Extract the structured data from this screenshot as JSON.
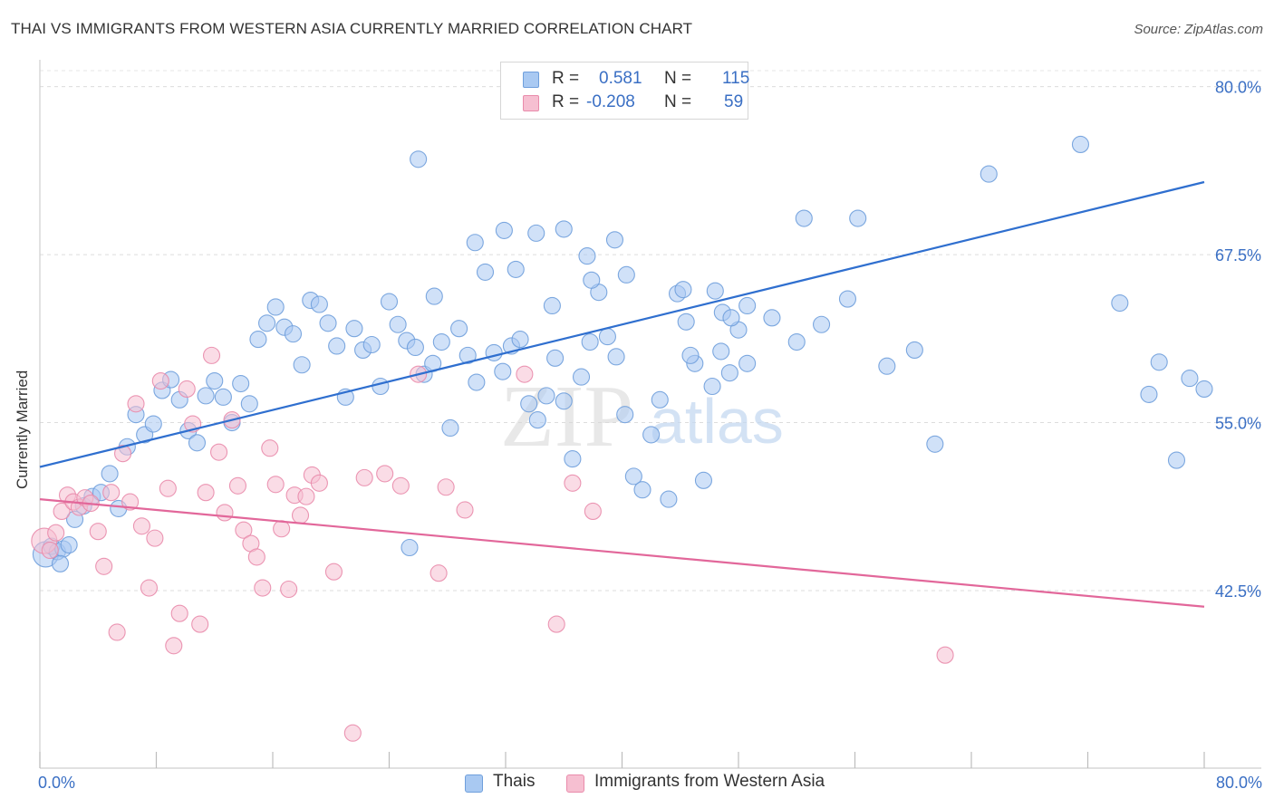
{
  "title": "THAI VS IMMIGRANTS FROM WESTERN ASIA CURRENTLY MARRIED CORRELATION CHART",
  "source": "Source: ZipAtlas.com",
  "watermark": {
    "zip": "ZIP",
    "atlas": "atlas"
  },
  "legend": {
    "rows": [
      {
        "r_label": "R =",
        "r_value": "0.581",
        "n_label": "N =",
        "n_value": "115",
        "color": "#a9c9f2",
        "border": "#6f9fdc"
      },
      {
        "r_label": "R =",
        "r_value": "-0.208",
        "n_label": "N =",
        "n_value": "59",
        "color": "#f6bfd1",
        "border": "#e98bab"
      }
    ]
  },
  "bottom_legend": [
    {
      "label": "Thais",
      "color": "#a9c9f2",
      "border": "#6f9fdc"
    },
    {
      "label": "Immigrants from Western Asia",
      "color": "#f6bfd1",
      "border": "#e98bab"
    }
  ],
  "chart_data": {
    "type": "scatter",
    "ylabel": "Currently Married",
    "xlim": [
      0,
      80
    ],
    "ylim": [
      30.5,
      82.0
    ],
    "x_tick_labels": [
      {
        "value": 0,
        "label": "0.0%"
      },
      {
        "value": 80,
        "label": "80.0%"
      }
    ],
    "y_tick_labels": [
      {
        "value": 80.0,
        "label": "80.0%"
      },
      {
        "value": 67.5,
        "label": "67.5%"
      },
      {
        "value": 55.0,
        "label": "55.0%"
      },
      {
        "value": 42.5,
        "label": "42.5%"
      }
    ],
    "x_minor_ticks": [
      0,
      8,
      16,
      24,
      32,
      40,
      48,
      56,
      64,
      72,
      80
    ],
    "grid": "horizontal dashed",
    "colors": {
      "blue": "#3a76d4",
      "pink": "#e8709a",
      "axis_text": "#3a6fc4"
    },
    "series": [
      {
        "name": "Thais",
        "color": "#a9c9f2",
        "stroke": "#6f9fdc",
        "trend": {
          "x": [
            0,
            80
          ],
          "y": [
            51.7,
            72.9
          ],
          "color": "#2f6fcf"
        },
        "points": [
          [
            0.4,
            45.2,
            14
          ],
          [
            0.8,
            45.8,
            9
          ],
          [
            1.2,
            45.4,
            9
          ],
          [
            1.6,
            45.6,
            9
          ],
          [
            2.0,
            45.9,
            9
          ],
          [
            1.4,
            44.5,
            9
          ],
          [
            2.4,
            47.8,
            9
          ],
          [
            3.0,
            48.8,
            9
          ],
          [
            3.6,
            49.5,
            9
          ],
          [
            4.2,
            49.8,
            9
          ],
          [
            4.8,
            51.2,
            9
          ],
          [
            5.4,
            48.6,
            9
          ],
          [
            6.0,
            53.2,
            9
          ],
          [
            6.6,
            55.6,
            9
          ],
          [
            7.2,
            54.1,
            9
          ],
          [
            7.8,
            54.9,
            9
          ],
          [
            8.4,
            57.4,
            9
          ],
          [
            9.0,
            58.2,
            9
          ],
          [
            9.6,
            56.7,
            9
          ],
          [
            10.2,
            54.4,
            9
          ],
          [
            10.8,
            53.5,
            9
          ],
          [
            11.4,
            57.0,
            9
          ],
          [
            12.0,
            58.1,
            9
          ],
          [
            12.6,
            56.9,
            9
          ],
          [
            13.2,
            55.0,
            9
          ],
          [
            13.8,
            57.9,
            9
          ],
          [
            14.4,
            56.4,
            9
          ],
          [
            15.0,
            61.2,
            9
          ],
          [
            15.6,
            62.4,
            9
          ],
          [
            16.2,
            63.6,
            9
          ],
          [
            16.8,
            62.1,
            9
          ],
          [
            17.4,
            61.6,
            9
          ],
          [
            18.0,
            59.3,
            9
          ],
          [
            18.6,
            64.1,
            9
          ],
          [
            19.2,
            63.8,
            9
          ],
          [
            19.8,
            62.4,
            9
          ],
          [
            20.4,
            60.7,
            9
          ],
          [
            21.0,
            56.9,
            9
          ],
          [
            21.6,
            62.0,
            9
          ],
          [
            22.2,
            60.4,
            9
          ],
          [
            22.8,
            60.8,
            9
          ],
          [
            23.4,
            57.7,
            9
          ],
          [
            24.0,
            64.0,
            9
          ],
          [
            24.6,
            62.3,
            9
          ],
          [
            25.2,
            61.1,
            9
          ],
          [
            25.8,
            60.6,
            9
          ],
          [
            26.4,
            58.6,
            9
          ],
          [
            27.0,
            59.4,
            9
          ],
          [
            27.6,
            61.0,
            9
          ],
          [
            28.2,
            54.6,
            9
          ],
          [
            28.8,
            62.0,
            9
          ],
          [
            29.4,
            60.0,
            9
          ],
          [
            30.0,
            58.0,
            9
          ],
          [
            30.6,
            66.2,
            9
          ],
          [
            31.2,
            60.2,
            9
          ],
          [
            31.8,
            58.8,
            9
          ],
          [
            32.4,
            60.7,
            9
          ],
          [
            33.0,
            61.2,
            9
          ],
          [
            33.6,
            56.4,
            9
          ],
          [
            34.2,
            55.2,
            9
          ],
          [
            34.8,
            57.0,
            9
          ],
          [
            35.4,
            59.8,
            9
          ],
          [
            36.0,
            56.6,
            9
          ],
          [
            36.6,
            52.3,
            9
          ],
          [
            37.2,
            58.4,
            9
          ],
          [
            37.8,
            61.0,
            9
          ],
          [
            38.4,
            64.7,
            9
          ],
          [
            39.0,
            61.4,
            9
          ],
          [
            39.6,
            59.9,
            9
          ],
          [
            40.2,
            55.6,
            9
          ],
          [
            40.8,
            51.0,
            9
          ],
          [
            41.4,
            50.0,
            9
          ],
          [
            42.0,
            54.1,
            9
          ],
          [
            42.6,
            56.7,
            9
          ],
          [
            43.2,
            49.3,
            9
          ],
          [
            43.8,
            64.6,
            9
          ],
          [
            44.4,
            62.5,
            9
          ],
          [
            45.0,
            59.4,
            9
          ],
          [
            45.6,
            50.7,
            9
          ],
          [
            46.2,
            57.7,
            9
          ],
          [
            46.8,
            60.3,
            9
          ],
          [
            47.4,
            58.7,
            9
          ],
          [
            48.0,
            61.9,
            9
          ],
          [
            48.6,
            59.4,
            9
          ],
          [
            25.4,
            45.7,
            9
          ],
          [
            26.0,
            74.6,
            9
          ],
          [
            27.1,
            64.4,
            9
          ],
          [
            29.9,
            68.4,
            9
          ],
          [
            31.9,
            69.3,
            9
          ],
          [
            32.7,
            66.4,
            9
          ],
          [
            34.1,
            69.1,
            9
          ],
          [
            36.0,
            69.4,
            9
          ],
          [
            37.6,
            67.4,
            9
          ],
          [
            39.5,
            68.6,
            9
          ],
          [
            35.2,
            63.7,
            9
          ],
          [
            37.9,
            65.6,
            9
          ],
          [
            40.3,
            66.0,
            9
          ],
          [
            44.2,
            64.9,
            9
          ],
          [
            44.7,
            60.0,
            9
          ],
          [
            46.4,
            64.8,
            9
          ],
          [
            46.9,
            63.2,
            9
          ],
          [
            47.5,
            62.8,
            9
          ],
          [
            48.6,
            63.7,
            9
          ],
          [
            50.3,
            62.8,
            9
          ],
          [
            52.0,
            61.0,
            9
          ],
          [
            53.7,
            62.3,
            9
          ],
          [
            55.5,
            64.2,
            9
          ],
          [
            58.2,
            59.2,
            9
          ],
          [
            60.1,
            60.4,
            9
          ],
          [
            52.5,
            70.2,
            9
          ],
          [
            56.2,
            70.2,
            9
          ],
          [
            61.5,
            53.4,
            9
          ],
          [
            65.2,
            73.5,
            9
          ],
          [
            71.5,
            75.7,
            9
          ],
          [
            74.2,
            63.9,
            9
          ],
          [
            76.9,
            59.5,
            9
          ],
          [
            79.0,
            58.3,
            9
          ],
          [
            78.1,
            52.2,
            9
          ],
          [
            76.2,
            57.1,
            9
          ],
          [
            80.0,
            57.5,
            9
          ]
        ]
      },
      {
        "name": "Immigrants from Western Asia",
        "color": "#f6bfd1",
        "stroke": "#e98bab",
        "trend": {
          "x": [
            0,
            80
          ],
          "y": [
            49.3,
            41.3
          ],
          "color": "#e2679a"
        },
        "points": [
          [
            0.3,
            46.2,
            14
          ],
          [
            0.7,
            45.5,
            9
          ],
          [
            1.1,
            46.8,
            9
          ],
          [
            1.5,
            48.4,
            9
          ],
          [
            1.9,
            49.6,
            9
          ],
          [
            2.3,
            49.1,
            9
          ],
          [
            2.7,
            48.7,
            9
          ],
          [
            3.1,
            49.4,
            9
          ],
          [
            3.5,
            49.0,
            9
          ],
          [
            4.0,
            46.9,
            9
          ],
          [
            4.4,
            44.3,
            9
          ],
          [
            4.9,
            49.8,
            9
          ],
          [
            5.3,
            39.4,
            9
          ],
          [
            5.7,
            52.7,
            9
          ],
          [
            6.2,
            49.1,
            9
          ],
          [
            6.6,
            56.4,
            9
          ],
          [
            7.0,
            47.3,
            9
          ],
          [
            7.5,
            42.7,
            9
          ],
          [
            7.9,
            46.4,
            9
          ],
          [
            8.3,
            58.1,
            9
          ],
          [
            8.8,
            50.1,
            9
          ],
          [
            9.2,
            38.4,
            9
          ],
          [
            9.6,
            40.8,
            9
          ],
          [
            10.1,
            57.5,
            9
          ],
          [
            10.5,
            54.9,
            9
          ],
          [
            11.0,
            40.0,
            9
          ],
          [
            11.4,
            49.8,
            9
          ],
          [
            11.8,
            60.0,
            9
          ],
          [
            12.3,
            52.8,
            9
          ],
          [
            12.7,
            48.3,
            9
          ],
          [
            13.2,
            55.2,
            9
          ],
          [
            13.6,
            50.3,
            9
          ],
          [
            14.0,
            47.0,
            9
          ],
          [
            14.5,
            46.0,
            9
          ],
          [
            14.9,
            45.0,
            9
          ],
          [
            15.3,
            42.7,
            9
          ],
          [
            15.8,
            53.1,
            9
          ],
          [
            16.2,
            50.4,
            9
          ],
          [
            16.6,
            47.1,
            9
          ],
          [
            17.1,
            42.6,
            9
          ],
          [
            17.5,
            49.6,
            9
          ],
          [
            17.9,
            48.1,
            9
          ],
          [
            18.3,
            49.5,
            9
          ],
          [
            18.7,
            51.1,
            9
          ],
          [
            19.2,
            50.5,
            9
          ],
          [
            20.2,
            43.9,
            9
          ],
          [
            21.5,
            31.9,
            9
          ],
          [
            22.3,
            50.9,
            9
          ],
          [
            23.7,
            51.2,
            9
          ],
          [
            24.8,
            50.3,
            9
          ],
          [
            26.0,
            58.6,
            9
          ],
          [
            27.4,
            43.8,
            9
          ],
          [
            27.9,
            50.2,
            9
          ],
          [
            29.2,
            48.5,
            9
          ],
          [
            33.3,
            58.6,
            9
          ],
          [
            35.5,
            40.0,
            9
          ],
          [
            36.6,
            50.5,
            9
          ],
          [
            38.0,
            48.4,
            9
          ],
          [
            62.2,
            37.7,
            9
          ]
        ]
      }
    ]
  }
}
